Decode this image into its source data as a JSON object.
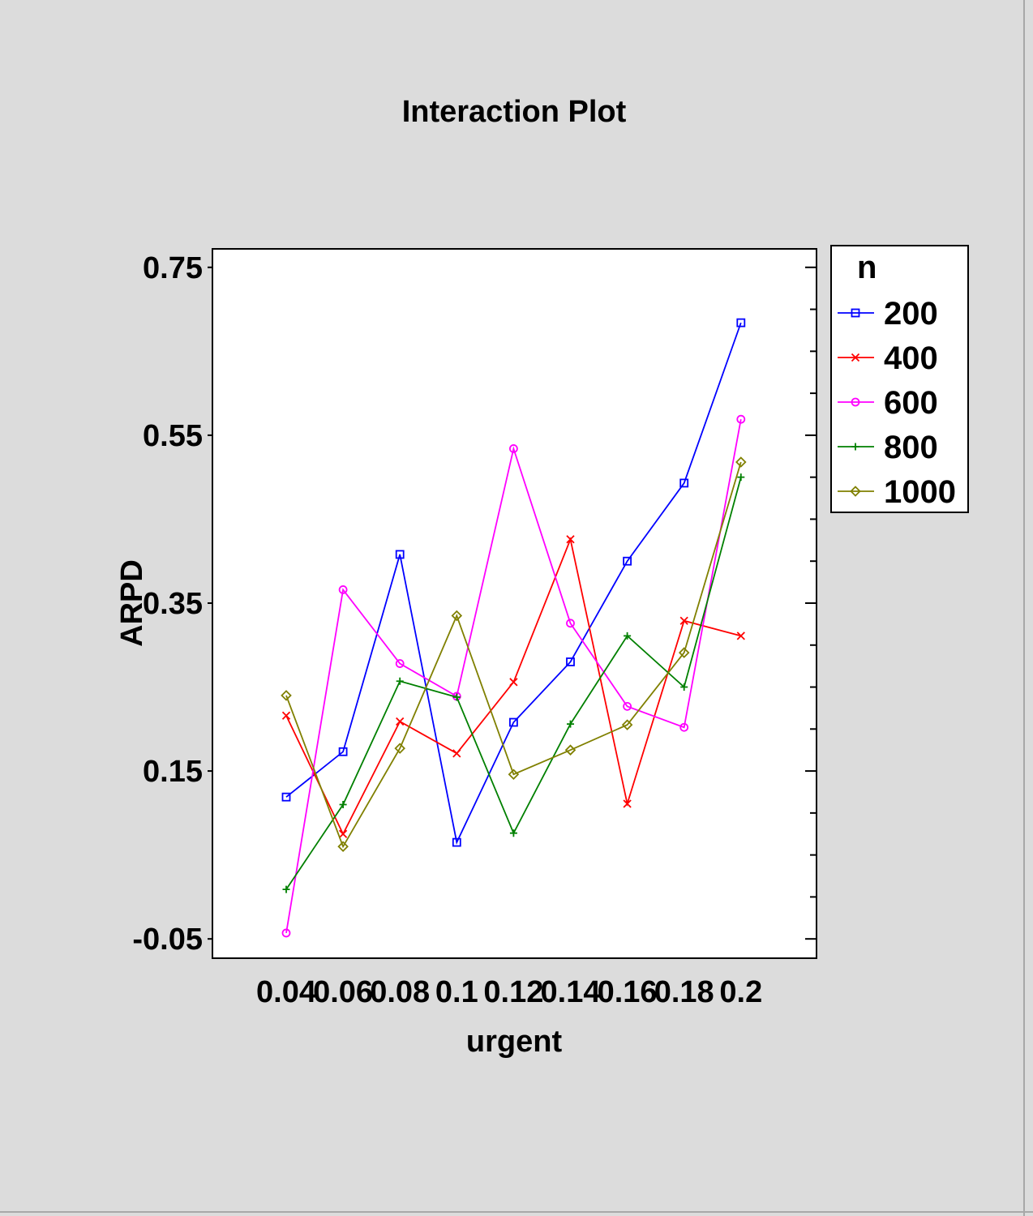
{
  "chart_data": {
    "type": "line",
    "title": "Interaction Plot",
    "xlabel": "urgent",
    "ylabel": "ARPD",
    "categories": [
      "0.04",
      "0.06",
      "0.08",
      "0.1",
      "0.12",
      "0.14",
      "0.16",
      "0.18",
      "0.2"
    ],
    "yticks": [
      "0.75",
      "0.55",
      "0.35",
      "0.15",
      "-0.05"
    ],
    "ylim": [
      -0.073,
      0.772
    ],
    "legend_title": "n",
    "legend_position": "right",
    "series": [
      {
        "name": "200",
        "color": "#0000ff",
        "marker": "square",
        "values": [
          0.119,
          0.173,
          0.408,
          0.065,
          0.208,
          0.28,
          0.4,
          0.493,
          0.684
        ]
      },
      {
        "name": "400",
        "color": "#ff0000",
        "marker": "x",
        "values": [
          0.216,
          0.075,
          0.209,
          0.171,
          0.256,
          0.426,
          0.111,
          0.329,
          0.311
        ]
      },
      {
        "name": "600",
        "color": "#ff00ff",
        "marker": "circle",
        "values": [
          -0.043,
          0.366,
          0.278,
          0.239,
          0.534,
          0.326,
          0.227,
          0.202,
          0.569
        ]
      },
      {
        "name": "800",
        "color": "#008000",
        "marker": "plus",
        "values": [
          0.009,
          0.11,
          0.257,
          0.238,
          0.076,
          0.206,
          0.311,
          0.25,
          0.5
        ]
      },
      {
        "name": "1000",
        "color": "#808000",
        "marker": "diamond",
        "values": [
          0.24,
          0.06,
          0.177,
          0.335,
          0.146,
          0.175,
          0.205,
          0.291,
          0.518
        ]
      }
    ]
  }
}
